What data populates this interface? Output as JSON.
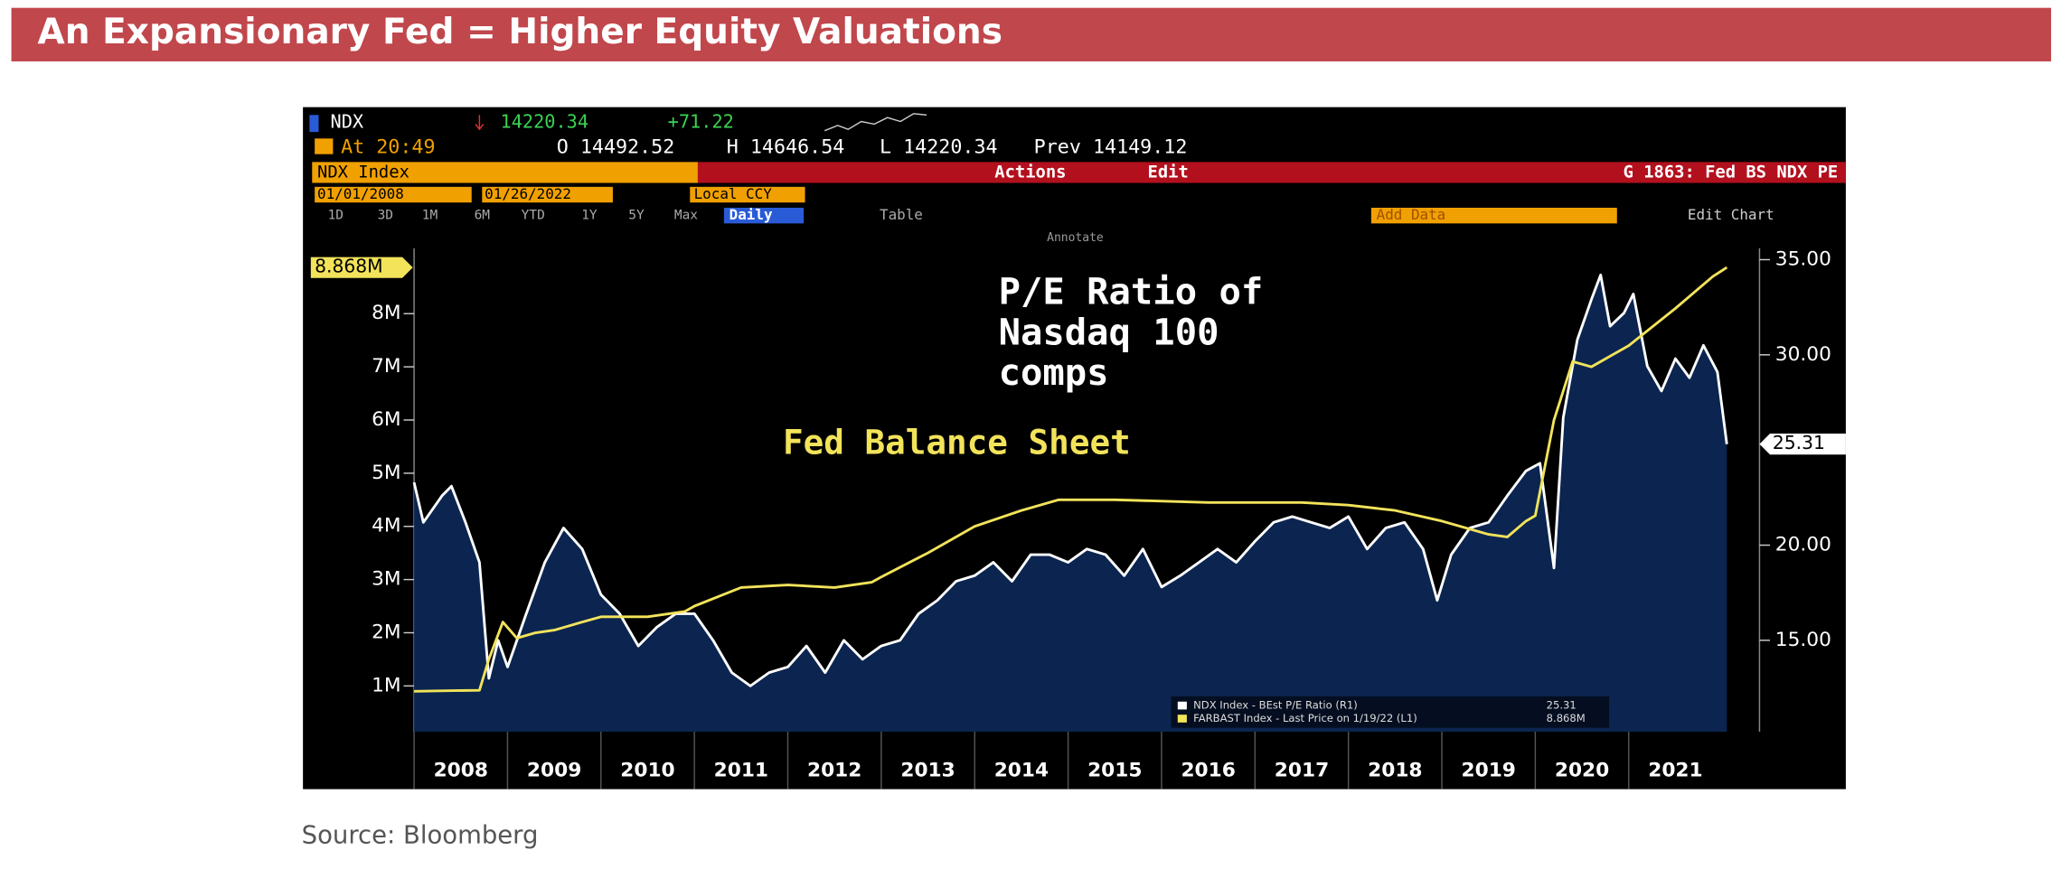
{
  "header": {
    "title": "An Expansionary Fed = Higher Equity Valuations"
  },
  "terminal": {
    "ticker": "NDX",
    "price": "14220.34",
    "change": "+71.22",
    "time": "At 20:49",
    "open": "O 14492.52",
    "high": "H 14646.54",
    "low": "L 14220.34",
    "prev": "Prev 14149.12",
    "security": "NDX Index",
    "actions": "Actions",
    "edit": "Edit",
    "chart_id": "G 1863: Fed BS NDX PE",
    "start_date": "01/01/2008",
    "end_date": "01/26/2022",
    "currency": "Local CCY",
    "ranges": [
      "1D",
      "3D",
      "1M",
      "6M",
      "YTD",
      "1Y",
      "5Y",
      "Max"
    ],
    "frequency": "Daily",
    "table": "Table",
    "add_data": "Add Data",
    "edit_chart": "Edit Chart",
    "annotate": "Annotate"
  },
  "chart_data": {
    "type": "line",
    "annotations": [
      "P/E Ratio of",
      "Nasdaq 100",
      "comps",
      "Fed Balance Sheet"
    ],
    "xlim": [
      2008,
      2022.4
    ],
    "xticks": [
      2008,
      2009,
      2010,
      2011,
      2012,
      2013,
      2014,
      2015,
      2016,
      2017,
      2018,
      2019,
      2020,
      2021
    ],
    "ylim": [
      0.14,
      9.23
    ],
    "yticks": [
      {
        "value": 1,
        "label": "1M"
      },
      {
        "value": 2,
        "label": "2M"
      },
      {
        "value": 3,
        "label": "3M"
      },
      {
        "value": 4,
        "label": "4M"
      },
      {
        "value": 5,
        "label": "5M"
      },
      {
        "value": 6,
        "label": "6M"
      },
      {
        "value": 7,
        "label": "7M"
      },
      {
        "value": 8,
        "label": "8M"
      }
    ],
    "y2lim": [
      10.2,
      35.6
    ],
    "y2ticks": [
      {
        "value": 15,
        "label": "15.00"
      },
      {
        "value": 20,
        "label": "20.00"
      },
      {
        "value": 30,
        "label": "30.00"
      },
      {
        "value": 35,
        "label": "35.00"
      }
    ],
    "series": [
      {
        "name": "NDX Index - BEst P/E Ratio (R1)",
        "color": "#ffffff",
        "area_color": "#0b2550",
        "axis": "y2",
        "last_label": "25.31",
        "x": [
          2008.0,
          2008.1,
          2008.3,
          2008.4,
          2008.55,
          2008.7,
          2008.8,
          2008.9,
          2009.0,
          2009.2,
          2009.4,
          2009.6,
          2009.8,
          2010.0,
          2010.2,
          2010.4,
          2010.6,
          2010.8,
          2011.0,
          2011.2,
          2011.4,
          2011.6,
          2011.8,
          2012.0,
          2012.2,
          2012.4,
          2012.6,
          2012.8,
          2013.0,
          2013.2,
          2013.4,
          2013.6,
          2013.8,
          2014.0,
          2014.2,
          2014.4,
          2014.6,
          2014.8,
          2015.0,
          2015.2,
          2015.4,
          2015.6,
          2015.8,
          2016.0,
          2016.2,
          2016.4,
          2016.6,
          2016.8,
          2017.0,
          2017.2,
          2017.4,
          2017.6,
          2017.8,
          2018.0,
          2018.2,
          2018.4,
          2018.6,
          2018.8,
          2018.95,
          2019.1,
          2019.3,
          2019.5,
          2019.7,
          2019.9,
          2020.05,
          2020.2,
          2020.3,
          2020.45,
          2020.6,
          2020.7,
          2020.8,
          2020.95,
          2021.05,
          2021.2,
          2021.35,
          2021.5,
          2021.65,
          2021.8,
          2021.95,
          2022.05
        ],
        "values": [
          23.3,
          21.2,
          22.6,
          23.1,
          21.2,
          19.1,
          13.0,
          15.0,
          13.6,
          16.4,
          19.1,
          20.9,
          19.8,
          17.4,
          16.4,
          14.7,
          15.7,
          16.4,
          16.4,
          15.0,
          13.3,
          12.6,
          13.3,
          13.6,
          14.7,
          13.3,
          15.0,
          14.0,
          14.7,
          15.0,
          16.4,
          17.1,
          18.1,
          18.4,
          19.1,
          18.1,
          19.5,
          19.5,
          19.1,
          19.8,
          19.5,
          18.4,
          19.8,
          17.8,
          18.4,
          19.1,
          19.8,
          19.1,
          20.2,
          21.2,
          21.5,
          21.2,
          20.9,
          21.5,
          19.8,
          20.9,
          21.2,
          19.8,
          17.1,
          19.5,
          20.9,
          21.2,
          22.6,
          23.9,
          24.3,
          18.8,
          26.7,
          30.8,
          32.9,
          34.2,
          31.5,
          32.2,
          33.2,
          29.4,
          28.1,
          29.8,
          28.8,
          30.5,
          29.1,
          25.31
        ]
      },
      {
        "name": "FARBAST Index - Last Price on 1/19/22 (L1)",
        "color": "#f2e35a",
        "axis": "y",
        "last_label": "8.868M",
        "x": [
          2008.0,
          2008.7,
          2008.8,
          2008.95,
          2009.1,
          2009.3,
          2009.5,
          2009.8,
          2010.0,
          2010.5,
          2010.9,
          2011.0,
          2011.5,
          2012.0,
          2012.5,
          2012.9,
          2013.0,
          2013.5,
          2014.0,
          2014.5,
          2014.9,
          2015.5,
          2016.5,
          2017.5,
          2018.0,
          2018.5,
          2019.0,
          2019.5,
          2019.7,
          2019.9,
          2020.0,
          2020.2,
          2020.4,
          2020.6,
          2020.9,
          2021.0,
          2021.5,
          2021.9,
          2022.05
        ],
        "values": [
          0.9,
          0.92,
          1.5,
          2.2,
          1.9,
          2.0,
          2.05,
          2.2,
          2.3,
          2.3,
          2.4,
          2.5,
          2.85,
          2.9,
          2.85,
          2.95,
          3.05,
          3.5,
          4.0,
          4.3,
          4.5,
          4.5,
          4.45,
          4.45,
          4.4,
          4.3,
          4.1,
          3.85,
          3.8,
          4.1,
          4.2,
          6.0,
          7.1,
          7.0,
          7.3,
          7.4,
          8.1,
          8.7,
          8.868
        ]
      }
    ]
  },
  "source": "Source: Bloomberg"
}
